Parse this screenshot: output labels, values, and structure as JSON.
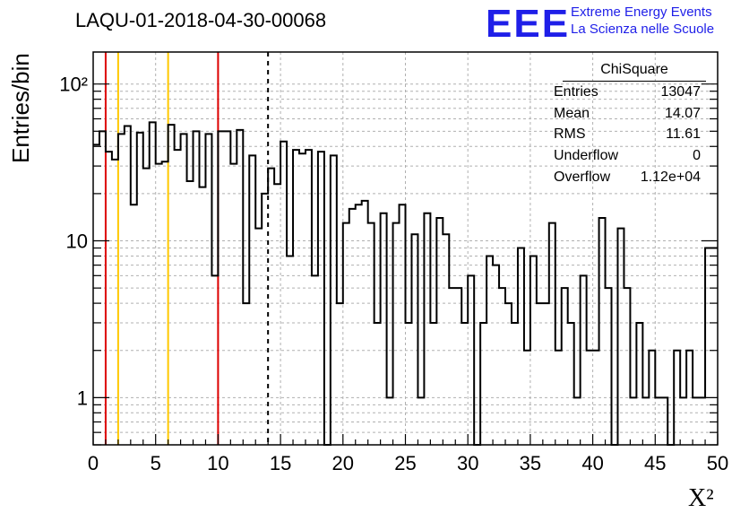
{
  "title": "LAQU-01-2018-04-30-00068",
  "logo": {
    "text": "EEE",
    "line1": "Extreme Energy Events",
    "line2": "La Scienza nelle Scuole"
  },
  "stats": {
    "title": "ChiSquare",
    "rows": [
      {
        "key": "Entries",
        "value": "13047"
      },
      {
        "key": "Mean",
        "value": "14.07"
      },
      {
        "key": "RMS",
        "value": "11.61"
      },
      {
        "key": "Underflow",
        "value": "0"
      },
      {
        "key": "Overflow",
        "value": "1.12e+04"
      }
    ]
  },
  "colors": {
    "red": "#dd0000",
    "gold": "#ffc800",
    "line": "#000000",
    "grid": "#b0b0b0",
    "logo": "#1f1fe8"
  },
  "chart_data": {
    "type": "histogram",
    "title": "LAQU-01-2018-04-30-00068",
    "xlabel": "X²",
    "ylabel": "Entries/bin",
    "xlim": [
      0,
      50
    ],
    "ylim": [
      0.5,
      160
    ],
    "yscale": "log",
    "grid": true,
    "bin_width": 0.5,
    "x_ticks": [
      "0",
      "5",
      "10",
      "15",
      "20",
      "25",
      "30",
      "35",
      "40",
      "45",
      "50"
    ],
    "y_ticks": [
      {
        "value": 1,
        "label": "1"
      },
      {
        "value": 10,
        "label": "10"
      },
      {
        "value": 100,
        "label": "10²"
      }
    ],
    "values": [
      41,
      50,
      37,
      33,
      48,
      54,
      17,
      49,
      29,
      57,
      31,
      32,
      55,
      38,
      48,
      24,
      50,
      22,
      48,
      6,
      50,
      50,
      31,
      51,
      4,
      35,
      12,
      20,
      29,
      23,
      43,
      8,
      38,
      36,
      38,
      6,
      37,
      0,
      35,
      4,
      13,
      16,
      17,
      18,
      13,
      3,
      15,
      1,
      13,
      17,
      3,
      11,
      1,
      15,
      3,
      14,
      11,
      5,
      5,
      3,
      6,
      0,
      3,
      8,
      7,
      5,
      4,
      3,
      9,
      2,
      8,
      4,
      4,
      13,
      2,
      5,
      3,
      1,
      6,
      2,
      2,
      14,
      5,
      0,
      12,
      5,
      1,
      3,
      1,
      2,
      1,
      1,
      0,
      2,
      1,
      2,
      1,
      1,
      9,
      9
    ],
    "vlines": [
      {
        "x": 1,
        "color": "red",
        "style": "solid"
      },
      {
        "x": 2,
        "color": "gold",
        "style": "solid"
      },
      {
        "x": 6,
        "color": "gold",
        "style": "solid"
      },
      {
        "x": 10,
        "color": "red",
        "style": "solid"
      },
      {
        "x": 14,
        "color": "black",
        "style": "dashed"
      }
    ]
  }
}
